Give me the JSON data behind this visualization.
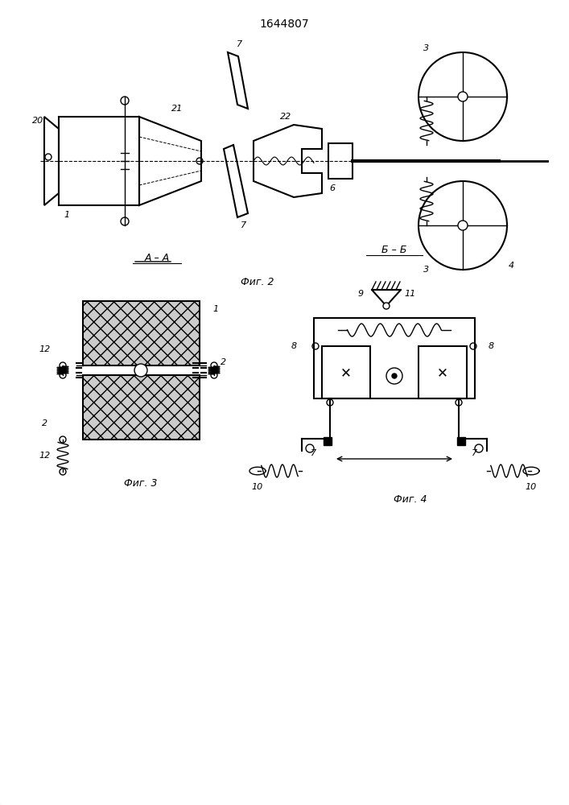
{
  "title": "1644807",
  "fig2_caption": "Фиг. 2",
  "fig3_caption": "Фиг. 3",
  "fig4_caption": "Фиг. 4",
  "fig3_label": "А – А",
  "fig4_label": "Б – Б",
  "bg_color": "#ffffff",
  "line_color": "#000000",
  "hatch_color": "#000000",
  "hatch_pattern": "xx"
}
